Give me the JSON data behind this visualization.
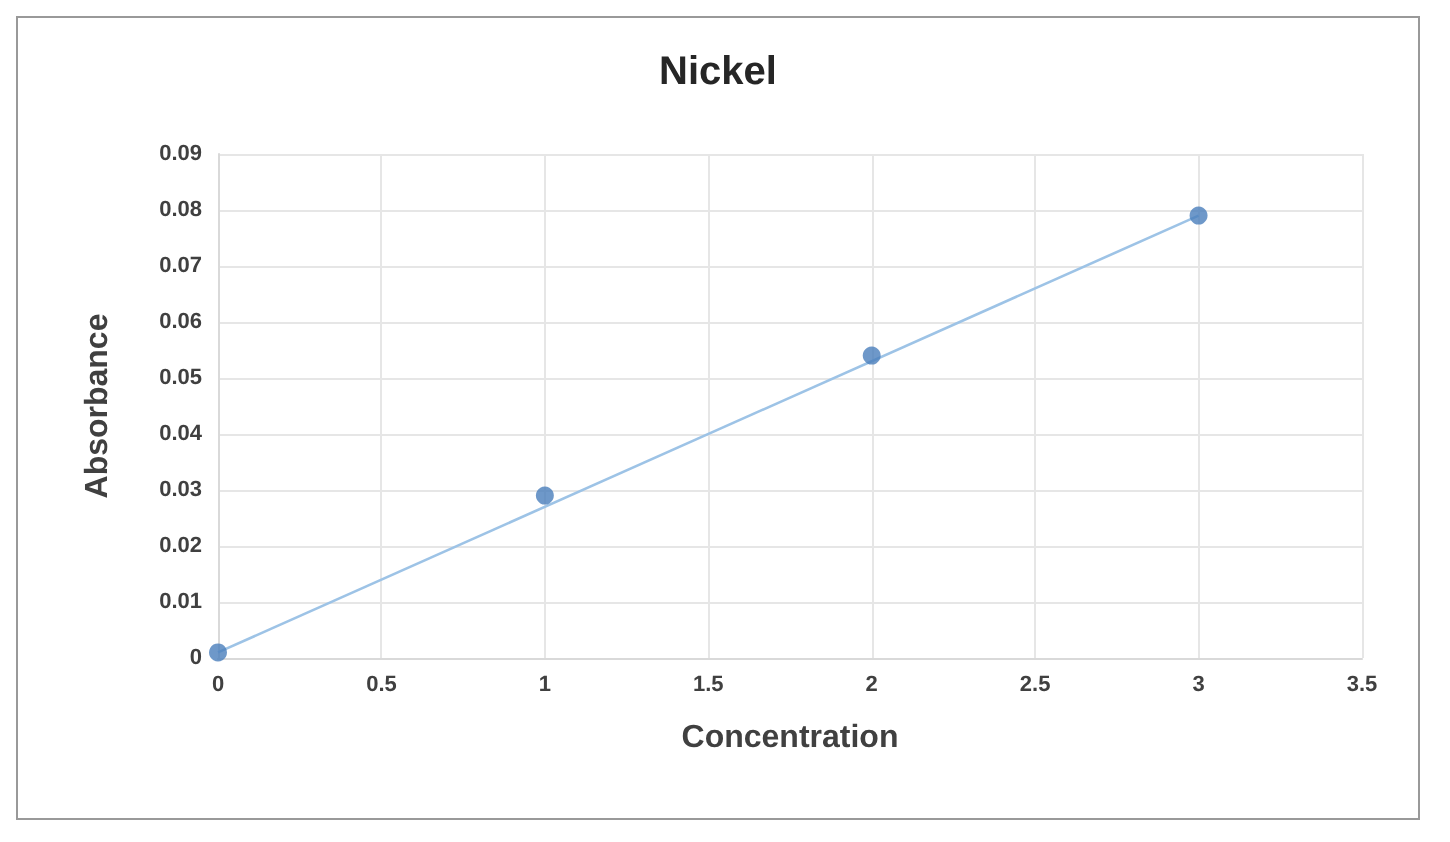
{
  "chart_data": {
    "type": "scatter",
    "title": "Nickel",
    "xlabel": "Concentration",
    "ylabel": "Absorbance",
    "x": [
      0,
      1,
      2,
      3
    ],
    "series": [
      {
        "color": "#4a7ebb",
        "values": [
          0.001,
          0.029,
          0.054,
          0.079
        ]
      },
      {
        "type": "line",
        "marker": "none",
        "color": "#9dc3e6",
        "x": [
          0,
          3
        ],
        "values": [
          0.001,
          0.079
        ]
      }
    ],
    "xlim": [
      0,
      3.5
    ],
    "xticks": [
      0,
      0.5,
      1,
      1.5,
      2,
      2.5,
      3,
      3.5
    ],
    "ylim": [
      0,
      0.09
    ],
    "yticks": [
      0,
      0.01,
      0.02,
      0.03,
      0.04,
      0.05,
      0.06,
      0.07,
      0.08,
      0.09
    ],
    "grid": true,
    "marker": "circle"
  }
}
